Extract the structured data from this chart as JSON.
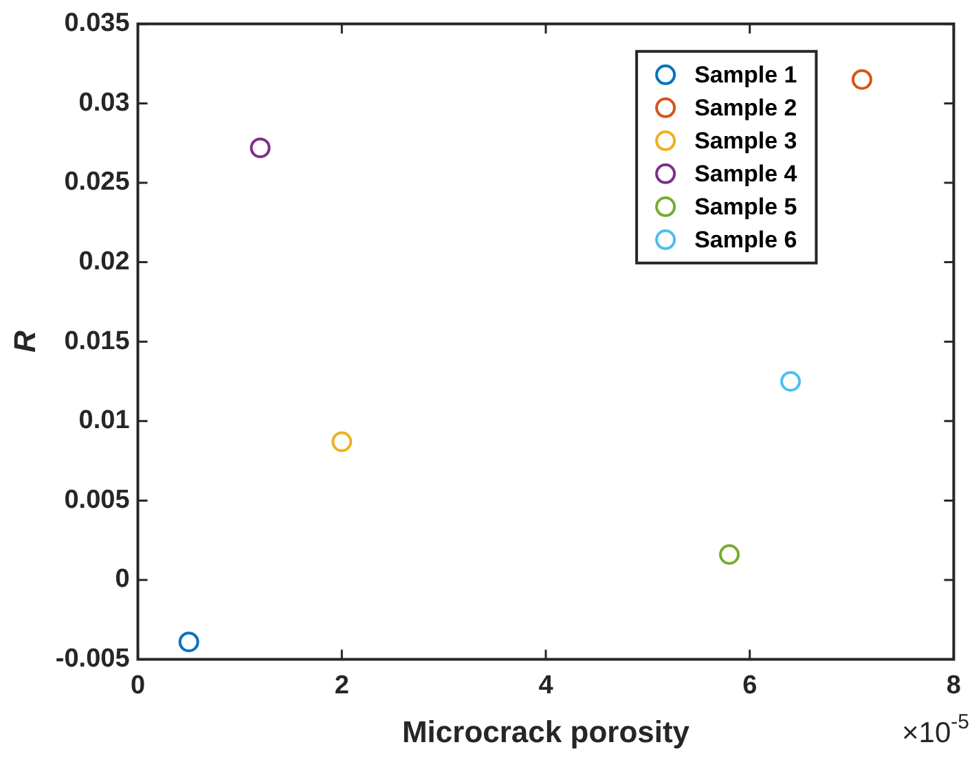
{
  "chart_data": {
    "type": "scatter",
    "xlabel": "Microcrack porosity",
    "ylabel": "R",
    "xlim": [
      0,
      8
    ],
    "xticks": [
      0,
      2,
      4,
      6,
      8
    ],
    "ylim": [
      -0.005,
      0.035
    ],
    "yticks": [
      -0.005,
      0,
      0.005,
      0.01,
      0.015,
      0.02,
      0.025,
      0.03,
      0.035
    ],
    "annotations": [
      "×10$^{-5}$"
    ],
    "legend": "top right",
    "marker": "circle",
    "grid": false,
    "series": [
      {
        "name": "Sample 1",
        "color": "#0072bd",
        "x": [
          0.5
        ],
        "values": [
          -0.0039
        ]
      },
      {
        "name": "Sample 2",
        "color": "#d95319",
        "x": [
          7.1
        ],
        "values": [
          0.0315
        ]
      },
      {
        "name": "Sample 3",
        "color": "#edb120",
        "x": [
          2
        ],
        "values": [
          0.0087
        ]
      },
      {
        "name": "Sample 4",
        "color": "#7e2f8e",
        "x": [
          1.2
        ],
        "values": [
          0.0272
        ]
      },
      {
        "name": "Sample 5",
        "color": "#77ac30",
        "x": [
          5.8
        ],
        "values": [
          0.0016
        ]
      },
      {
        "name": "Sample 6",
        "color": "#4dbeee",
        "x": [
          6.4
        ],
        "values": [
          0.0125
        ]
      }
    ]
  }
}
